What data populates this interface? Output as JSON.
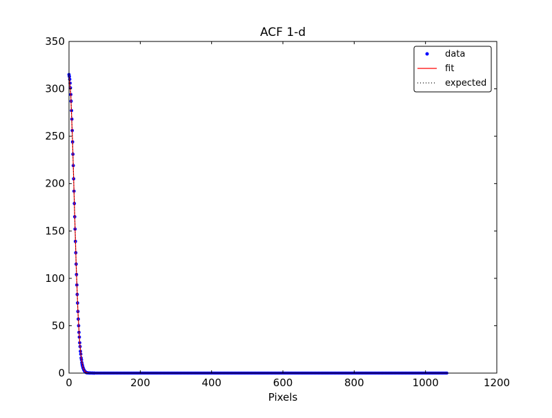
{
  "chart_data": {
    "type": "scatter",
    "title": "ACF 1-d",
    "xlabel": "Pixels",
    "ylabel": "",
    "xlim": [
      0,
      1200
    ],
    "ylim": [
      0,
      350
    ],
    "xticks": [
      0,
      200,
      400,
      600,
      800,
      1000,
      1200
    ],
    "yticks": [
      0,
      50,
      100,
      150,
      200,
      250,
      300,
      350
    ],
    "xtick_labels": [
      "0",
      "200",
      "400",
      "600",
      "800",
      "1000",
      "1200"
    ],
    "ytick_labels": [
      "0",
      "50",
      "100",
      "150",
      "200",
      "250",
      "300",
      "350"
    ],
    "grid": false,
    "legend_position": "top-right",
    "legend": [
      "data",
      "fit",
      "expected"
    ],
    "data_x_range": [
      0,
      1062
    ],
    "series": [
      {
        "name": "data",
        "style": "points",
        "color": "#0000ff",
        "x": [
          0,
          1,
          2,
          3,
          4,
          5,
          6,
          7,
          8,
          9,
          10,
          11,
          12,
          13,
          14,
          15,
          16,
          17,
          18,
          19,
          20,
          21,
          22,
          23,
          24,
          25,
          26,
          27,
          28,
          29,
          30,
          31,
          32,
          33,
          34,
          35,
          36,
          37,
          38,
          39,
          40,
          41,
          42,
          43,
          44,
          45,
          46,
          47,
          48,
          49,
          50,
          52,
          55,
          58,
          60,
          65,
          70
        ],
        "y": [
          315,
          313,
          310,
          306,
          301,
          294,
          287,
          277,
          268,
          256,
          244,
          231,
          219,
          205,
          192,
          179,
          165,
          152,
          139,
          127,
          115,
          104,
          93,
          83,
          74,
          65,
          57,
          50,
          43,
          38,
          32,
          28,
          23,
          20,
          16,
          14,
          11,
          9,
          7.5,
          6,
          5,
          4,
          3.2,
          2.5,
          2,
          1.5,
          1.2,
          0.9,
          0.7,
          0.5,
          0.4,
          0.3,
          0.2,
          0.1,
          0.1,
          0.05,
          0
        ]
      },
      {
        "name": "fit",
        "style": "solid",
        "color": "#ff0000",
        "x": [
          0,
          5,
          10,
          15,
          20,
          25,
          30,
          35,
          40,
          45,
          50,
          60,
          70,
          100,
          1062
        ],
        "y": [
          315,
          294,
          244,
          179,
          115,
          65,
          32,
          14,
          5,
          1.5,
          0.4,
          0.1,
          0,
          0,
          0
        ]
      },
      {
        "name": "expected",
        "style": "dotted",
        "color": "#000000",
        "x": [
          0,
          5,
          10,
          15,
          20,
          25,
          30,
          35,
          40,
          45,
          50,
          60,
          70,
          100,
          1062
        ],
        "y": [
          315,
          294,
          244,
          179,
          115,
          65,
          32,
          14,
          5,
          1.5,
          0.4,
          0.1,
          0,
          0,
          0
        ]
      }
    ]
  }
}
